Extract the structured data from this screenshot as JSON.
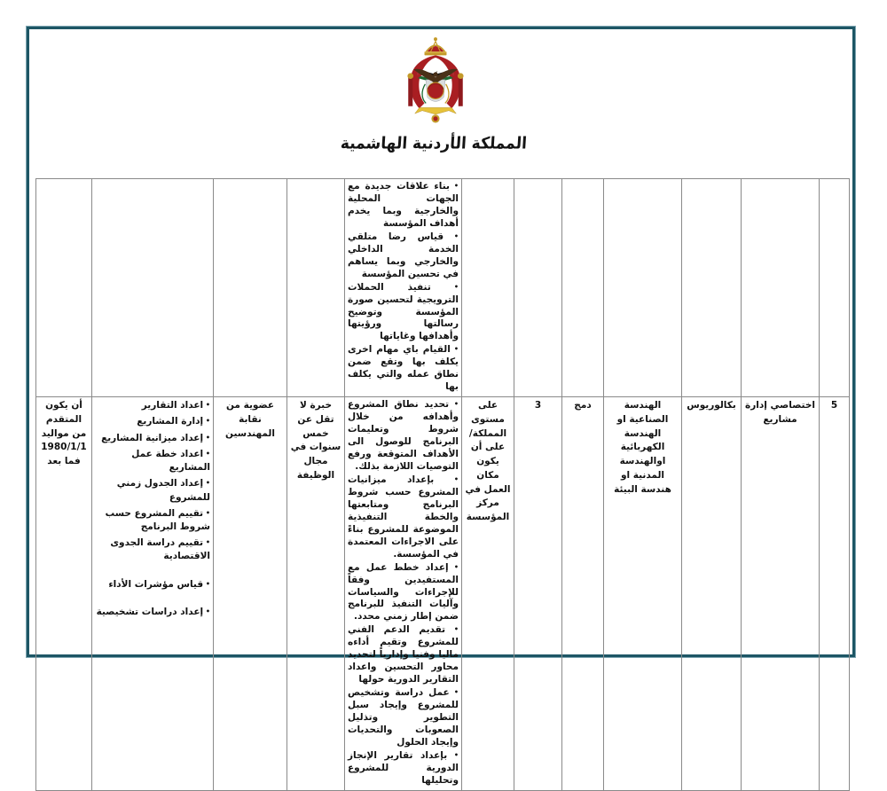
{
  "header": {
    "kingdom_name": "المملكة الأردنية الهاشمية"
  },
  "colors": {
    "page_border": "#1d5665",
    "page_border_light": "#7fa6b2",
    "table_border": "#8a8a8a",
    "emblem_red": "#a91e22",
    "emblem_gold": "#c49a29"
  },
  "table": {
    "continuation_row": {
      "tasks": [
        "بناء علاقات جديدة مع الجهات المحلية والخارجية وبما يخدم أهداف المؤسسة",
        "قياس رضا متلقي الخدمة الداخلي والخارجي وبما يساهم في تحسين المؤسسة",
        "تنفيذ الحملات الترويجية لتحسين صورة المؤسسة وتوضيح رسالتها ورؤيتها وأهدافها وغاياتها",
        "القيام باي مهام اخرى يكلف بها وتقع ضمن نطاق عمله والتي يكلف بها"
      ]
    },
    "main_row": {
      "number": "5",
      "job_title": "اختصاصي إدارة مشاريع",
      "qualification": "بكالوريوس",
      "specialization": "الهندسة الصناعية او الهندسة الكهربائية اوالهندسة المدنية او هندسة البيئة",
      "merge_label": "دمج",
      "count": "3",
      "work_location": "على مستوى المملكة/على أن يكون مكان العمل في مركز المؤسسة",
      "tasks": [
        "تحديد نطاق المشروع وأهدافه من خلال شروط وتعليمات البرنامج للوصول الى الأهداف المتوقعة ورفع التوصيات اللازمة بذلك.",
        "بإعداد ميزانيات المشروع حسب شروط البرنامج ومتابعتها والخطة التنفيذية الموضوعة للمشروع بناءً على الاجراءات المعتمدة في المؤسسة.",
        "إعداد خطط عمل مع المستفيدين وفقاً للإجراءات والسياسات وآليات التنفيذ للبرنامج ضمن إطار زمني محدد.",
        "تقديم الدعم الفني للمشروع وتقيم أداءه ماليا وفنيا وإدارياً لتحديد محاور التحسين واعداد التقارير الدورية حولها",
        "عمل دراسة وتشخيص للمشروع وإيجاد سبل التطوير وتذليل الصعوبات والتحديات وإيجاد الحلول",
        "بإعداد تقارير الإنجاز الدورية للمشروع وتحليلها"
      ],
      "experience": "خبرة لا تقل عن خمس سنوات في مجال الوظيفة",
      "membership": "عضوية من نقابة المهندسين",
      "skills": [
        "اعداد التقارير",
        "إدارة المشاريع",
        "إعداد ميزانية المشاريع",
        "اعداد خطة عمل المشاريع",
        "إعداد الجدول زمني للمشروع",
        "تقييم المشروع حسب شروط البرنامج",
        "تقييم دراسة الجدوى الاقتصادية",
        "قياس مؤشرات الأداء",
        "إعداد دراسات تشخيصية"
      ],
      "birth_requirement": "أن يكون المتقدم من مواليد 1980/1/1 فما بعد"
    }
  }
}
